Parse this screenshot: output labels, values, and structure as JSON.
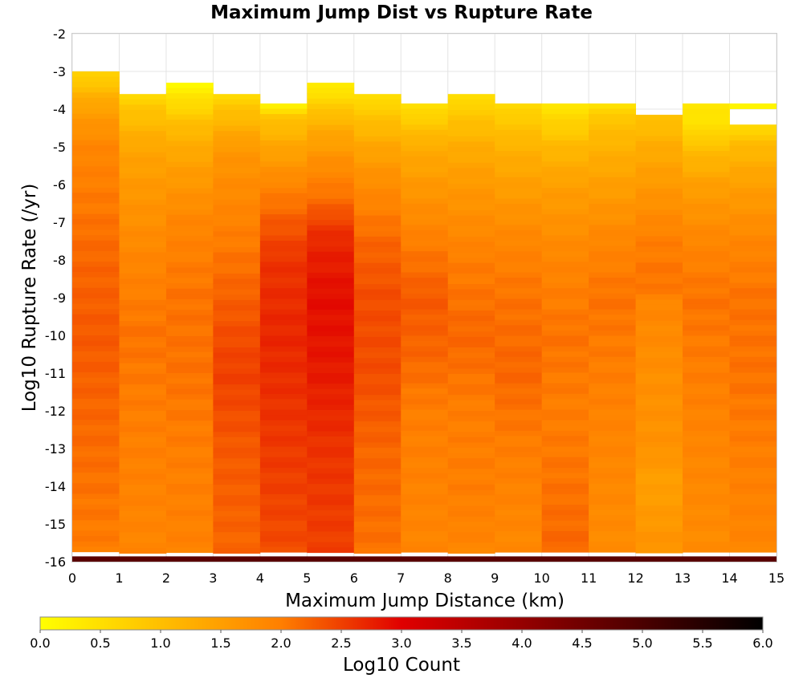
{
  "chart_data": {
    "type": "heatmap",
    "title": "Maximum Jump Dist vs Rupture Rate",
    "xlabel": "Maximum Jump Distance (km)",
    "ylabel": "Log10 Rupture Rate (/yr)",
    "colorbar_label": "Log10 Count",
    "xlim": [
      0,
      15
    ],
    "ylim": [
      -16,
      -2
    ],
    "x_ticks": [
      "0",
      "1",
      "2",
      "3",
      "4",
      "5",
      "6",
      "7",
      "8",
      "9",
      "10",
      "11",
      "12",
      "13",
      "14",
      "15"
    ],
    "y_ticks": [
      "-2",
      "-3",
      "-4",
      "-5",
      "-6",
      "-7",
      "-8",
      "-9",
      "-10",
      "-11",
      "-12",
      "-13",
      "-14",
      "-15",
      "-16"
    ],
    "colorbar_ticks": [
      "0.0",
      "0.5",
      "1.0",
      "1.5",
      "2.0",
      "2.5",
      "3.0",
      "3.5",
      "4.0",
      "4.5",
      "5.0",
      "5.5",
      "6.0"
    ],
    "color_range": [
      0,
      6
    ],
    "grid": true,
    "x_bin_width": 1,
    "y_bin_width": 0.14,
    "columns": [
      {
        "x_start": 0,
        "y_top": -3.0,
        "profile": [
          [
            -3.0,
            0.6
          ],
          [
            -3.4,
            1.0
          ],
          [
            -4.0,
            1.5
          ],
          [
            -5.0,
            1.9
          ],
          [
            -6.0,
            2.0
          ],
          [
            -8.0,
            2.2
          ],
          [
            -10.0,
            2.3
          ],
          [
            -12.0,
            2.2
          ],
          [
            -14.0,
            2.1
          ],
          [
            -15.8,
            2.0
          ]
        ]
      },
      {
        "x_start": 1,
        "y_top": -3.6,
        "profile": [
          [
            -3.6,
            0.6
          ],
          [
            -4.0,
            0.9
          ],
          [
            -5.0,
            1.4
          ],
          [
            -6.0,
            1.6
          ],
          [
            -8.0,
            1.9
          ],
          [
            -10.0,
            2.1
          ],
          [
            -12.0,
            2.0
          ],
          [
            -14.0,
            1.95
          ],
          [
            -15.8,
            1.9
          ]
        ]
      },
      {
        "x_start": 2,
        "y_top": -3.3,
        "profile": [
          [
            -3.3,
            0.1
          ],
          [
            -3.9,
            0.6
          ],
          [
            -4.5,
            1.1
          ],
          [
            -5.5,
            1.5
          ],
          [
            -7.0,
            1.9
          ],
          [
            -9.0,
            2.1
          ],
          [
            -11.0,
            2.1
          ],
          [
            -13.0,
            2.0
          ],
          [
            -15.8,
            1.95
          ]
        ]
      },
      {
        "x_start": 3,
        "y_top": -3.6,
        "profile": [
          [
            -3.6,
            0.6
          ],
          [
            -4.1,
            1.0
          ],
          [
            -5.0,
            1.6
          ],
          [
            -6.0,
            1.8
          ],
          [
            -8.0,
            2.1
          ],
          [
            -10.0,
            2.4
          ],
          [
            -11.0,
            2.5
          ],
          [
            -13.0,
            2.3
          ],
          [
            -15.8,
            2.2
          ]
        ]
      },
      {
        "x_start": 4,
        "y_top": -3.85,
        "profile": [
          [
            -3.85,
            0.1
          ],
          [
            -4.2,
            0.9
          ],
          [
            -5.0,
            1.4
          ],
          [
            -6.0,
            1.9
          ],
          [
            -7.0,
            2.3
          ],
          [
            -8.0,
            2.6
          ],
          [
            -10.0,
            2.7
          ],
          [
            -12.0,
            2.6
          ],
          [
            -14.0,
            2.5
          ],
          [
            -15.8,
            2.4
          ]
        ]
      },
      {
        "x_start": 5,
        "y_top": -3.3,
        "profile": [
          [
            -3.3,
            0.2
          ],
          [
            -3.8,
            0.7
          ],
          [
            -4.5,
            1.3
          ],
          [
            -5.5,
            1.8
          ],
          [
            -6.5,
            2.2
          ],
          [
            -7.0,
            2.5
          ],
          [
            -7.5,
            2.7
          ],
          [
            -9.0,
            2.9
          ],
          [
            -11.0,
            2.8
          ],
          [
            -13.0,
            2.6
          ],
          [
            -15.8,
            2.5
          ]
        ]
      },
      {
        "x_start": 6,
        "y_top": -3.6,
        "profile": [
          [
            -3.6,
            0.4
          ],
          [
            -4.0,
            0.8
          ],
          [
            -5.0,
            1.4
          ],
          [
            -6.0,
            1.8
          ],
          [
            -7.5,
            2.2
          ],
          [
            -9.0,
            2.4
          ],
          [
            -11.0,
            2.4
          ],
          [
            -13.0,
            2.2
          ],
          [
            -15.8,
            2.1
          ]
        ]
      },
      {
        "x_start": 7,
        "y_top": -3.85,
        "profile": [
          [
            -3.85,
            0.4
          ],
          [
            -4.3,
            0.8
          ],
          [
            -5.0,
            1.3
          ],
          [
            -6.0,
            1.6
          ],
          [
            -7.5,
            2.0
          ],
          [
            -9.0,
            2.3
          ],
          [
            -10.5,
            2.2
          ],
          [
            -12.0,
            2.0
          ],
          [
            -15.8,
            1.9
          ]
        ]
      },
      {
        "x_start": 8,
        "y_top": -3.6,
        "profile": [
          [
            -3.6,
            0.4
          ],
          [
            -4.0,
            0.8
          ],
          [
            -5.0,
            1.3
          ],
          [
            -6.0,
            1.6
          ],
          [
            -8.0,
            2.0
          ],
          [
            -10.0,
            2.2
          ],
          [
            -12.0,
            2.0
          ],
          [
            -14.0,
            2.0
          ],
          [
            -15.8,
            1.9
          ]
        ]
      },
      {
        "x_start": 9,
        "y_top": -3.85,
        "profile": [
          [
            -3.85,
            0.5
          ],
          [
            -4.2,
            0.8
          ],
          [
            -5.0,
            1.2
          ],
          [
            -6.0,
            1.5
          ],
          [
            -7.5,
            1.9
          ],
          [
            -9.0,
            2.1
          ],
          [
            -11.0,
            2.2
          ],
          [
            -13.0,
            2.0
          ],
          [
            -15.8,
            1.85
          ]
        ]
      },
      {
        "x_start": 10,
        "y_top": -3.85,
        "profile": [
          [
            -3.85,
            0.4
          ],
          [
            -4.4,
            0.7
          ],
          [
            -5.0,
            1.1
          ],
          [
            -6.0,
            1.5
          ],
          [
            -8.0,
            1.9
          ],
          [
            -10.0,
            2.1
          ],
          [
            -12.0,
            2.0
          ],
          [
            -14.0,
            2.1
          ],
          [
            -15.8,
            2.2
          ]
        ]
      },
      {
        "x_start": 11,
        "y_top": -3.85,
        "profile": [
          [
            -3.85,
            0.3
          ],
          [
            -4.2,
            0.9
          ],
          [
            -5.0,
            1.2
          ],
          [
            -6.0,
            1.5
          ],
          [
            -7.5,
            1.9
          ],
          [
            -9.0,
            2.1
          ],
          [
            -11.0,
            2.0
          ],
          [
            -13.0,
            1.9
          ],
          [
            -15.8,
            1.8
          ]
        ]
      },
      {
        "x_start": 12,
        "y_top": -4.15,
        "profile": [
          [
            -4.15,
            0.9
          ],
          [
            -5.0,
            1.3
          ],
          [
            -6.0,
            1.6
          ],
          [
            -7.5,
            2.0
          ],
          [
            -8.7,
            2.1
          ],
          [
            -9.0,
            1.9
          ],
          [
            -11.0,
            1.75
          ],
          [
            -13.0,
            1.7
          ],
          [
            -13.9,
            1.5
          ],
          [
            -15.8,
            1.7
          ]
        ]
      },
      {
        "x_start": 13,
        "y_top": -3.85,
        "profile": [
          [
            -3.85,
            0.3
          ],
          [
            -4.6,
            0.6
          ],
          [
            -5.0,
            1.0
          ],
          [
            -6.0,
            1.5
          ],
          [
            -7.5,
            1.9
          ],
          [
            -9.0,
            2.1
          ],
          [
            -11.0,
            2.0
          ],
          [
            -13.0,
            1.9
          ],
          [
            -15.8,
            1.8
          ]
        ]
      },
      {
        "x_start": 14,
        "y_top": -3.85,
        "profile": [
          [
            -3.85,
            0.2
          ],
          [
            -4.15,
            0.2
          ],
          [
            -4.45,
            0.6
          ],
          [
            -5.0,
            1.1
          ],
          [
            -6.0,
            1.5
          ],
          [
            -7.5,
            1.9
          ],
          [
            -9.0,
            2.1
          ],
          [
            -11.0,
            2.1
          ],
          [
            -13.0,
            2.0
          ],
          [
            -15.8,
            1.9
          ]
        ]
      }
    ],
    "bottom_row": {
      "y": -15.93,
      "value": 4.8
    },
    "column_gaps": [
      {
        "x_start": 14,
        "y_from": -3.99,
        "y_to": -4.44
      }
    ],
    "colormap": [
      "#ffff00",
      "#ff7f00",
      "#e00000",
      "#000000"
    ]
  }
}
